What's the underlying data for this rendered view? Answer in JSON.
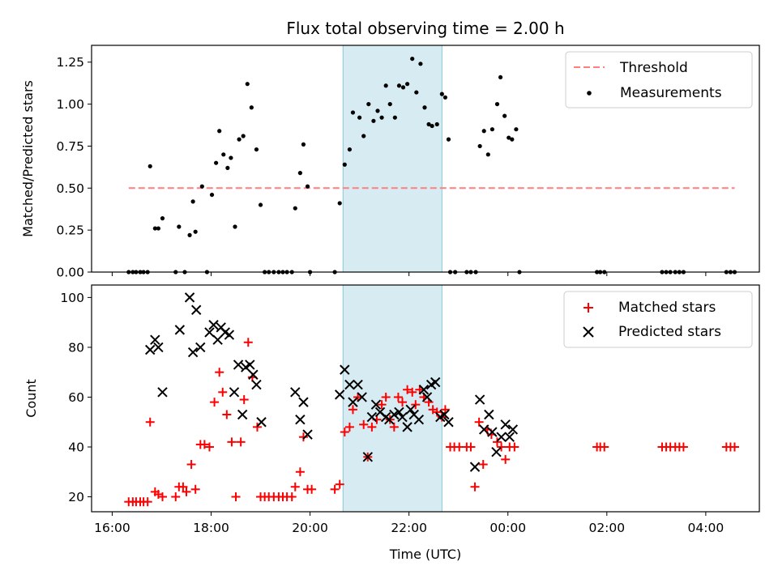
{
  "chart_data": [
    {
      "type": "scatter",
      "title": "Flux total observing time = 2.00 h",
      "ylabel": "Matched/Predicted stars",
      "xlabel": "",
      "ylim": [
        0,
        1.35
      ],
      "xlim": [
        "15:35",
        "05:05"
      ],
      "y_ticks": [
        "0.00",
        "0.25",
        "0.50",
        "0.75",
        "1.00",
        "1.25"
      ],
      "highlight_span": {
        "start": "20:40",
        "end": "22:40",
        "color": "#add8e6"
      },
      "threshold": {
        "name": "Threshold",
        "value": 0.5,
        "x_start": "16:20",
        "x_end": "04:35",
        "color": "#ff7f7f"
      },
      "legend": [
        "Threshold",
        "Measurements"
      ],
      "legend_position": "upper right",
      "series": [
        {
          "name": "Measurements",
          "color": "#000000",
          "marker": "dot",
          "points": [
            [
              "16:20",
              0
            ],
            [
              "16:25",
              0
            ],
            [
              "16:29",
              0
            ],
            [
              "16:34",
              0
            ],
            [
              "16:38",
              0
            ],
            [
              "16:43",
              0
            ],
            [
              "16:46",
              0.63
            ],
            [
              "16:52",
              0.26
            ],
            [
              "16:56",
              0.26
            ],
            [
              "17:01",
              0.32
            ],
            [
              "17:17",
              0
            ],
            [
              "17:21",
              0.27
            ],
            [
              "17:28",
              0
            ],
            [
              "17:34",
              0.22
            ],
            [
              "17:38",
              0.42
            ],
            [
              "17:41",
              0.24
            ],
            [
              "17:49",
              0.51
            ],
            [
              "17:55",
              0
            ],
            [
              "18:01",
              0.46
            ],
            [
              "18:06",
              0.65
            ],
            [
              "18:10",
              0.84
            ],
            [
              "18:15",
              0.7
            ],
            [
              "18:20",
              0.62
            ],
            [
              "18:24",
              0.68
            ],
            [
              "18:29",
              0.27
            ],
            [
              "18:34",
              0.79
            ],
            [
              "18:39",
              0.81
            ],
            [
              "18:44",
              1.12
            ],
            [
              "18:49",
              0.98
            ],
            [
              "18:55",
              0.73
            ],
            [
              "19:00",
              0.4
            ],
            [
              "19:05",
              0
            ],
            [
              "19:10",
              0
            ],
            [
              "19:16",
              0
            ],
            [
              "19:22",
              0
            ],
            [
              "19:27",
              0
            ],
            [
              "19:32",
              0
            ],
            [
              "19:38",
              0
            ],
            [
              "19:42",
              0.38
            ],
            [
              "19:48",
              0.59
            ],
            [
              "19:52",
              0.76
            ],
            [
              "19:57",
              0.51
            ],
            [
              "20:00",
              0
            ],
            [
              "20:30",
              0
            ],
            [
              "20:36",
              0.41
            ],
            [
              "20:42",
              0.64
            ],
            [
              "20:48",
              0.73
            ],
            [
              "20:52",
              0.95
            ],
            [
              "21:00",
              0.92
            ],
            [
              "21:05",
              0.81
            ],
            [
              "21:11",
              1.0
            ],
            [
              "21:17",
              0.9
            ],
            [
              "21:22",
              0.96
            ],
            [
              "21:27",
              0.92
            ],
            [
              "21:32",
              1.11
            ],
            [
              "21:37",
              1.0
            ],
            [
              "21:43",
              0.92
            ],
            [
              "21:48",
              1.11
            ],
            [
              "21:53",
              1.1
            ],
            [
              "21:58",
              1.12
            ],
            [
              "22:04",
              1.27
            ],
            [
              "22:09",
              1.07
            ],
            [
              "22:14",
              1.24
            ],
            [
              "22:19",
              0.98
            ],
            [
              "22:24",
              0.88
            ],
            [
              "22:28",
              0.87
            ],
            [
              "22:34",
              0.88
            ],
            [
              "22:40",
              1.06
            ],
            [
              "22:44",
              1.04
            ],
            [
              "22:48",
              0.79
            ],
            [
              "22:50",
              0
            ],
            [
              "22:56",
              0
            ],
            [
              "23:10",
              0
            ],
            [
              "23:15",
              0
            ],
            [
              "23:21",
              0
            ],
            [
              "23:26",
              0.75
            ],
            [
              "23:31",
              0.84
            ],
            [
              "23:36",
              0.7
            ],
            [
              "23:41",
              0.85
            ],
            [
              "23:47",
              1.0
            ],
            [
              "23:51",
              1.16
            ],
            [
              "23:56",
              0.93
            ],
            [
              "00:01",
              0.8
            ],
            [
              "00:05",
              0.79
            ],
            [
              "00:10",
              0.85
            ],
            [
              "00:14",
              0
            ],
            [
              "01:48",
              0
            ],
            [
              "01:52",
              0
            ],
            [
              "01:57",
              0
            ],
            [
              "03:07",
              0
            ],
            [
              "03:12",
              0
            ],
            [
              "03:17",
              0
            ],
            [
              "03:23",
              0
            ],
            [
              "03:28",
              0
            ],
            [
              "03:33",
              0
            ],
            [
              "04:25",
              0
            ],
            [
              "04:30",
              0
            ],
            [
              "04:35",
              0
            ]
          ]
        }
      ]
    },
    {
      "type": "scatter",
      "title": "",
      "ylabel": "Count",
      "xlabel": "Time (UTC)",
      "ylim": [
        14,
        105
      ],
      "xlim": [
        "15:35",
        "05:05"
      ],
      "x_ticks": [
        "16:00",
        "18:00",
        "20:00",
        "22:00",
        "00:00",
        "02:00",
        "04:00"
      ],
      "y_ticks": [
        "20",
        "40",
        "60",
        "80",
        "100"
      ],
      "highlight_span": {
        "start": "20:40",
        "end": "22:40",
        "color": "#add8e6"
      },
      "legend": [
        "Matched stars",
        "Predicted stars"
      ],
      "legend_position": "upper right",
      "series": [
        {
          "name": "Matched stars",
          "color": "#ff0000",
          "marker": "plus",
          "points": [
            [
              "16:20",
              18
            ],
            [
              "16:25",
              18
            ],
            [
              "16:29",
              18
            ],
            [
              "16:34",
              18
            ],
            [
              "16:38",
              18
            ],
            [
              "16:43",
              18
            ],
            [
              "16:46",
              50
            ],
            [
              "16:52",
              22
            ],
            [
              "16:56",
              21
            ],
            [
              "17:01",
              20
            ],
            [
              "17:17",
              20
            ],
            [
              "17:21",
              24
            ],
            [
              "17:26",
              24
            ],
            [
              "17:30",
              22
            ],
            [
              "17:36",
              33
            ],
            [
              "17:41",
              23
            ],
            [
              "17:47",
              41
            ],
            [
              "17:52",
              41
            ],
            [
              "17:58",
              40
            ],
            [
              "18:04",
              58
            ],
            [
              "18:10",
              70
            ],
            [
              "18:14",
              62
            ],
            [
              "18:19",
              53
            ],
            [
              "18:25",
              42
            ],
            [
              "18:30",
              20
            ],
            [
              "18:36",
              42
            ],
            [
              "18:40",
              59
            ],
            [
              "18:45",
              82
            ],
            [
              "18:50",
              68
            ],
            [
              "18:56",
              48
            ],
            [
              "19:00",
              20
            ],
            [
              "19:05",
              20
            ],
            [
              "19:10",
              20
            ],
            [
              "19:16",
              20
            ],
            [
              "19:22",
              20
            ],
            [
              "19:27",
              20
            ],
            [
              "19:32",
              20
            ],
            [
              "19:38",
              20
            ],
            [
              "19:42",
              24
            ],
            [
              "19:48",
              30
            ],
            [
              "19:52",
              44
            ],
            [
              "19:57",
              23
            ],
            [
              "20:02",
              23
            ],
            [
              "20:30",
              23
            ],
            [
              "20:36",
              25
            ],
            [
              "20:42",
              46
            ],
            [
              "20:48",
              48
            ],
            [
              "20:52",
              55
            ],
            [
              "20:58",
              60
            ],
            [
              "21:05",
              49
            ],
            [
              "21:10",
              36
            ],
            [
              "21:15",
              48
            ],
            [
              "21:21",
              51
            ],
            [
              "21:27",
              57
            ],
            [
              "21:32",
              60
            ],
            [
              "21:37",
              51
            ],
            [
              "21:42",
              48
            ],
            [
              "21:47",
              60
            ],
            [
              "21:52",
              58
            ],
            [
              "21:58",
              63
            ],
            [
              "22:04",
              62
            ],
            [
              "22:08",
              57
            ],
            [
              "22:13",
              63
            ],
            [
              "22:18",
              60
            ],
            [
              "22:24",
              58
            ],
            [
              "22:29",
              55
            ],
            [
              "22:34",
              54
            ],
            [
              "22:40",
              52
            ],
            [
              "22:44",
              55
            ],
            [
              "22:50",
              40
            ],
            [
              "22:55",
              40
            ],
            [
              "23:01",
              40
            ],
            [
              "23:10",
              40
            ],
            [
              "23:15",
              40
            ],
            [
              "23:20",
              24
            ],
            [
              "23:25",
              50
            ],
            [
              "23:30",
              33
            ],
            [
              "23:35",
              47
            ],
            [
              "23:40",
              45
            ],
            [
              "23:47",
              42
            ],
            [
              "23:52",
              40
            ],
            [
              "23:57",
              35
            ],
            [
              "00:02",
              40
            ],
            [
              "00:08",
              40
            ],
            [
              "01:48",
              40
            ],
            [
              "01:52",
              40
            ],
            [
              "01:57",
              40
            ],
            [
              "03:07",
              40
            ],
            [
              "03:12",
              40
            ],
            [
              "03:17",
              40
            ],
            [
              "03:23",
              40
            ],
            [
              "03:28",
              40
            ],
            [
              "03:33",
              40
            ],
            [
              "04:25",
              40
            ],
            [
              "04:30",
              40
            ],
            [
              "04:35",
              40
            ]
          ]
        },
        {
          "name": "Predicted stars",
          "color": "#000000",
          "marker": "x",
          "points": [
            [
              "16:46",
              79
            ],
            [
              "16:52",
              83
            ],
            [
              "16:56",
              80
            ],
            [
              "17:01",
              62
            ],
            [
              "17:22",
              87
            ],
            [
              "17:34",
              100
            ],
            [
              "17:38",
              78
            ],
            [
              "17:42",
              95
            ],
            [
              "17:47",
              80
            ],
            [
              "17:58",
              86
            ],
            [
              "18:03",
              89
            ],
            [
              "18:08",
              83
            ],
            [
              "18:12",
              88
            ],
            [
              "18:17",
              86
            ],
            [
              "18:22",
              85
            ],
            [
              "18:28",
              62
            ],
            [
              "18:33",
              73
            ],
            [
              "18:38",
              53
            ],
            [
              "18:42",
              72
            ],
            [
              "18:47",
              73
            ],
            [
              "18:51",
              69
            ],
            [
              "18:55",
              65
            ],
            [
              "19:01",
              50
            ],
            [
              "19:42",
              62
            ],
            [
              "19:48",
              51
            ],
            [
              "19:52",
              58
            ],
            [
              "19:57",
              45
            ],
            [
              "20:36",
              61
            ],
            [
              "20:42",
              71
            ],
            [
              "20:48",
              65
            ],
            [
              "20:52",
              58
            ],
            [
              "20:58",
              65
            ],
            [
              "21:03",
              60
            ],
            [
              "21:10",
              36
            ],
            [
              "21:15",
              52
            ],
            [
              "21:20",
              57
            ],
            [
              "21:25",
              54
            ],
            [
              "21:32",
              52
            ],
            [
              "21:36",
              51
            ],
            [
              "21:42",
              53
            ],
            [
              "21:48",
              54
            ],
            [
              "21:52",
              52
            ],
            [
              "21:58",
              48
            ],
            [
              "22:02",
              55
            ],
            [
              "22:06",
              53
            ],
            [
              "22:12",
              51
            ],
            [
              "22:18",
              63
            ],
            [
              "22:22",
              60
            ],
            [
              "22:27",
              65
            ],
            [
              "22:32",
              66
            ],
            [
              "22:38",
              52
            ],
            [
              "22:43",
              53
            ],
            [
              "22:48",
              50
            ],
            [
              "23:20",
              32
            ],
            [
              "23:26",
              59
            ],
            [
              "23:31",
              47
            ],
            [
              "23:37",
              53
            ],
            [
              "23:41",
              46
            ],
            [
              "23:46",
              38
            ],
            [
              "23:52",
              44
            ],
            [
              "23:57",
              49
            ],
            [
              "00:02",
              44
            ],
            [
              "00:06",
              47
            ]
          ]
        }
      ]
    }
  ]
}
